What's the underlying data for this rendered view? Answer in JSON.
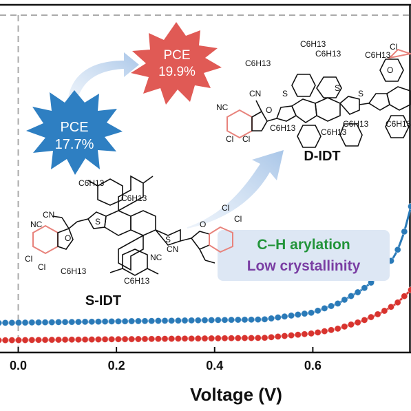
{
  "chart_data": {
    "type": "line",
    "title": "",
    "xlabel": "Voltage (V)",
    "ylabel": "",
    "xlim": [
      -0.04,
      0.8
    ],
    "x_ticks": [
      "0.0",
      "0.2",
      "0.4",
      "0.6"
    ],
    "x_tick_values": [
      0.0,
      0.2,
      0.4,
      0.6
    ],
    "grid": false,
    "series": [
      {
        "color": "#2a7ab8",
        "points": [
          [
            -0.04,
            0.915
          ],
          [
            0.5,
            0.905
          ],
          [
            0.6,
            0.885
          ],
          [
            0.65,
            0.86
          ],
          [
            0.7,
            0.82
          ],
          [
            0.74,
            0.775
          ],
          [
            0.77,
            0.715
          ],
          [
            0.785,
            0.66
          ],
          [
            0.8,
            0.58
          ]
        ]
      },
      {
        "color": "#d8332e",
        "points": [
          [
            -0.04,
            0.965
          ],
          [
            0.5,
            0.958
          ],
          [
            0.6,
            0.945
          ],
          [
            0.65,
            0.932
          ],
          [
            0.7,
            0.91
          ],
          [
            0.74,
            0.885
          ],
          [
            0.77,
            0.86
          ],
          [
            0.8,
            0.82
          ]
        ]
      }
    ],
    "reference_lines": {
      "style": "dashed",
      "color": "#aaaaaa",
      "vertical_at_x": 0.0
    }
  },
  "annotations": {
    "pce_small": {
      "label": "PCE",
      "value": "17.7%",
      "color": "#2e7fc2"
    },
    "pce_large": {
      "label": "PCE",
      "value": "19.9%",
      "color": "#e05a55"
    },
    "molecule_small": "S-IDT",
    "molecule_large": "D-IDT",
    "feature_1": {
      "text": "C–H arylation",
      "color": "#22943a"
    },
    "feature_2": {
      "text": "Low crystallinity",
      "color": "#7a3ea3"
    },
    "chem_labels": {
      "hexyl": "C6H13",
      "cl": "Cl",
      "cn": "CN",
      "nc": "NC",
      "o": "O",
      "s": "S"
    }
  },
  "colors": {
    "arrow": "#b9d0ec",
    "feature_box": "#dde7f4",
    "ring_pink": "#e8837c",
    "structure": "#111111"
  }
}
